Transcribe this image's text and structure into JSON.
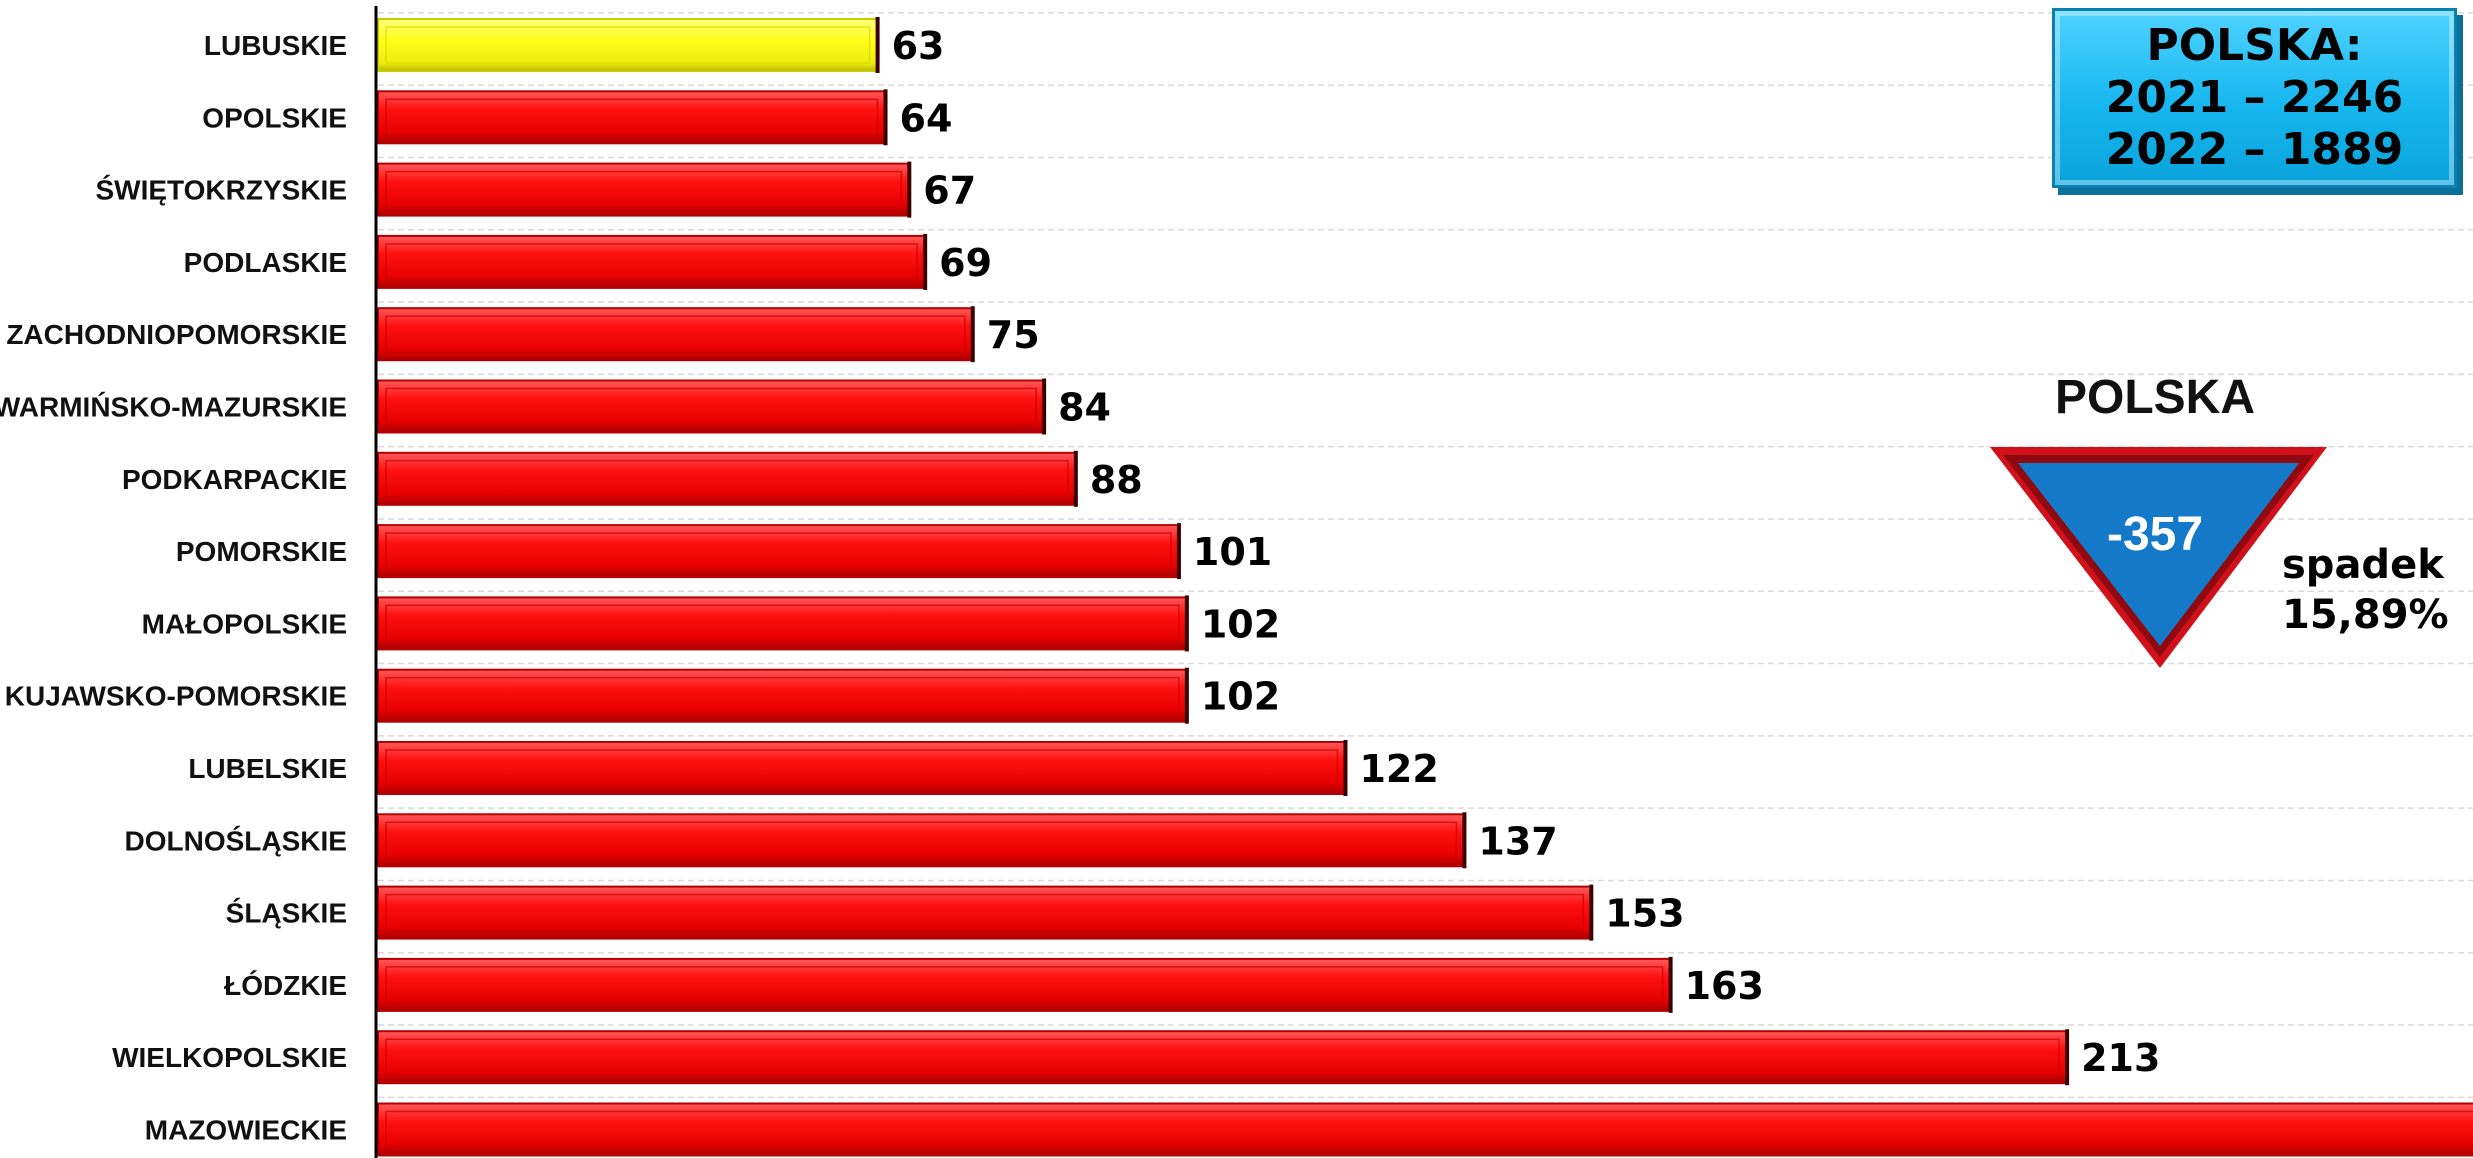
{
  "chart_data": {
    "type": "bar",
    "orientation": "horizontal",
    "categories": [
      "LUBUSKIE",
      "OPOLSKIE",
      "ŚWIĘTOKRZYSKIE",
      "PODLASKIE",
      "ZACHODNIOPOMORSKIE",
      "WARMIŃSKO-MAZURSKIE",
      "PODKARPACKIE",
      "POMORSKIE",
      "MAŁOPOLSKIE",
      "KUJAWSKO-POMORSKIE",
      "LUBELSKIE",
      "DOLNOŚLĄSKIE",
      "ŚLĄSKIE",
      "ŁÓDZKIE",
      "WIELKOPOLSKIE",
      "MAZOWIECKIE"
    ],
    "values": [
      63,
      64,
      67,
      69,
      75,
      84,
      88,
      101,
      102,
      102,
      122,
      137,
      153,
      163,
      213,
      286
    ],
    "xlim": [
      0,
      290
    ],
    "grid": true,
    "highlight_category": "LUBUSKIE",
    "colors": {
      "bar": "#ff1a1a",
      "bar_dark": "#b30000",
      "highlight": "#f5f52a",
      "highlight_dark": "#c9c900"
    }
  },
  "summary_box": {
    "line1": "POLSKA:",
    "line2": "2021 – 2246",
    "line3": "2022 – 1889",
    "color": "#19b8ef"
  },
  "change_badge": {
    "title": "POLSKA",
    "value": "-357",
    "note_line1": "spadek",
    "note_line2": "15,89%",
    "triangle_fill": "#1479c8",
    "triangle_border": "#d0101a"
  }
}
